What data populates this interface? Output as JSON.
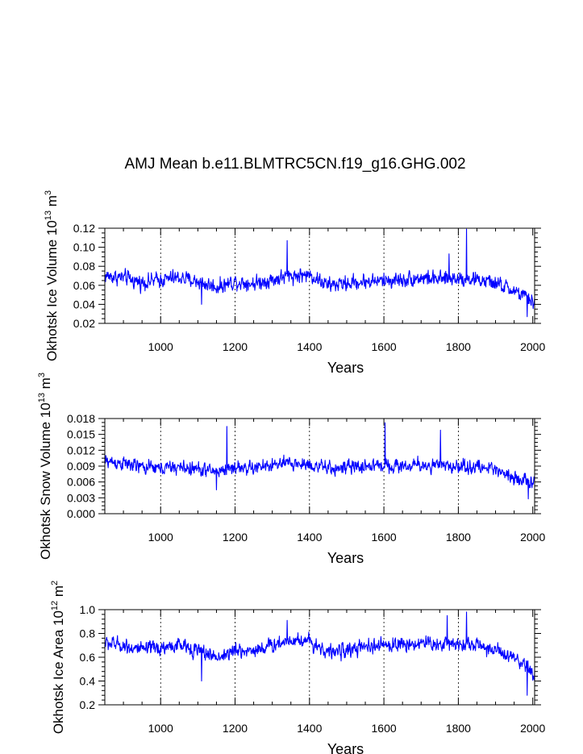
{
  "title": "AMJ Mean b.e11.BLMTRC5CN.f19_g16.GHG.002",
  "series_color": "#0000ff",
  "chart_data": [
    {
      "type": "line",
      "ylabel": "Okhotsk Ice Volume 10",
      "ylabel_exp": "13",
      "ylabel_unit": " m",
      "ylabel_unit_exp": "3",
      "xlabel": "Years",
      "xlim": [
        850,
        2005
      ],
      "ylim": [
        0.02,
        0.12
      ],
      "yticks": [
        0.02,
        0.04,
        0.06,
        0.08,
        0.1,
        0.12
      ],
      "ytick_labels": [
        "0.02",
        "0.04",
        "0.06",
        "0.08",
        "0.10",
        "0.12"
      ],
      "xticks": [
        1000,
        1200,
        1400,
        1600,
        1800,
        2000
      ],
      "xtick_labels": [
        "1000",
        "1200",
        "1400",
        "1600",
        "1800",
        "2000"
      ],
      "gridlines_x": [
        1000,
        1200,
        1400,
        1600,
        1800
      ],
      "approx_series": [
        {
          "year": 850,
          "value": 0.07
        },
        {
          "year": 900,
          "value": 0.068
        },
        {
          "year": 950,
          "value": 0.063
        },
        {
          "year": 1000,
          "value": 0.066
        },
        {
          "year": 1050,
          "value": 0.068
        },
        {
          "year": 1100,
          "value": 0.064
        },
        {
          "year": 1150,
          "value": 0.058
        },
        {
          "year": 1200,
          "value": 0.064
        },
        {
          "year": 1250,
          "value": 0.062
        },
        {
          "year": 1300,
          "value": 0.066
        },
        {
          "year": 1350,
          "value": 0.07
        },
        {
          "year": 1400,
          "value": 0.071
        },
        {
          "year": 1450,
          "value": 0.06
        },
        {
          "year": 1500,
          "value": 0.062
        },
        {
          "year": 1550,
          "value": 0.064
        },
        {
          "year": 1600,
          "value": 0.065
        },
        {
          "year": 1650,
          "value": 0.066
        },
        {
          "year": 1700,
          "value": 0.068
        },
        {
          "year": 1750,
          "value": 0.066
        },
        {
          "year": 1800,
          "value": 0.068
        },
        {
          "year": 1850,
          "value": 0.066
        },
        {
          "year": 1900,
          "value": 0.062
        },
        {
          "year": 1950,
          "value": 0.054
        },
        {
          "year": 2005,
          "value": 0.042
        }
      ],
      "noise": 0.011,
      "peaks": [
        {
          "year": 1822,
          "value": 0.119
        },
        {
          "year": 1340,
          "value": 0.107
        },
        {
          "year": 1775,
          "value": 0.093
        }
      ],
      "troughs": [
        {
          "year": 1985,
          "value": 0.027
        },
        {
          "year": 1110,
          "value": 0.04
        }
      ]
    },
    {
      "type": "line",
      "ylabel": "Okhotsk Snow Volume 10",
      "ylabel_exp": "13",
      "ylabel_unit": " m",
      "ylabel_unit_exp": "3",
      "xlabel": "Years",
      "xlim": [
        850,
        2005
      ],
      "ylim": [
        0.0,
        0.018
      ],
      "yticks": [
        0.0,
        0.003,
        0.006,
        0.009,
        0.012,
        0.015,
        0.018
      ],
      "ytick_labels": [
        "0.000",
        "0.003",
        "0.006",
        "0.009",
        "0.012",
        "0.015",
        "0.018"
      ],
      "xticks": [
        1000,
        1200,
        1400,
        1600,
        1800,
        2000
      ],
      "xtick_labels": [
        "1000",
        "1200",
        "1400",
        "1600",
        "1800",
        "2000"
      ],
      "gridlines_x": [
        1000,
        1200,
        1400,
        1600,
        1800
      ],
      "approx_series": [
        {
          "year": 850,
          "value": 0.01
        },
        {
          "year": 900,
          "value": 0.0095
        },
        {
          "year": 950,
          "value": 0.0088
        },
        {
          "year": 1000,
          "value": 0.0086
        },
        {
          "year": 1050,
          "value": 0.0088
        },
        {
          "year": 1100,
          "value": 0.0084
        },
        {
          "year": 1150,
          "value": 0.008
        },
        {
          "year": 1200,
          "value": 0.0088
        },
        {
          "year": 1250,
          "value": 0.0086
        },
        {
          "year": 1300,
          "value": 0.0092
        },
        {
          "year": 1350,
          "value": 0.0095
        },
        {
          "year": 1400,
          "value": 0.0093
        },
        {
          "year": 1450,
          "value": 0.0085
        },
        {
          "year": 1500,
          "value": 0.0087
        },
        {
          "year": 1550,
          "value": 0.009
        },
        {
          "year": 1600,
          "value": 0.0092
        },
        {
          "year": 1650,
          "value": 0.009
        },
        {
          "year": 1700,
          "value": 0.0092
        },
        {
          "year": 1750,
          "value": 0.009
        },
        {
          "year": 1800,
          "value": 0.009
        },
        {
          "year": 1850,
          "value": 0.0088
        },
        {
          "year": 1900,
          "value": 0.0085
        },
        {
          "year": 1950,
          "value": 0.007
        },
        {
          "year": 2005,
          "value": 0.0055
        }
      ],
      "noise": 0.0018,
      "peaks": [
        {
          "year": 1603,
          "value": 0.0172
        },
        {
          "year": 1178,
          "value": 0.0165
        },
        {
          "year": 1752,
          "value": 0.0158
        }
      ],
      "troughs": [
        {
          "year": 1988,
          "value": 0.0028
        },
        {
          "year": 1150,
          "value": 0.0045
        }
      ]
    },
    {
      "type": "line",
      "ylabel": "Okhotsk Ice Area 10",
      "ylabel_exp": "12",
      "ylabel_unit": " m",
      "ylabel_unit_exp": "2",
      "xlabel": "Years",
      "xlim": [
        850,
        2005
      ],
      "ylim": [
        0.2,
        1.0
      ],
      "yticks": [
        0.2,
        0.4,
        0.6,
        0.8,
        1.0
      ],
      "ytick_labels": [
        "0.2",
        "0.4",
        "0.6",
        "0.8",
        "1.0"
      ],
      "xticks": [
        1000,
        1200,
        1400,
        1600,
        1800,
        2000
      ],
      "xtick_labels": [
        "1000",
        "1200",
        "1400",
        "1600",
        "1800",
        "2000"
      ],
      "gridlines_x": [
        1000,
        1200,
        1400,
        1600,
        1800
      ],
      "approx_series": [
        {
          "year": 850,
          "value": 0.72
        },
        {
          "year": 900,
          "value": 0.7
        },
        {
          "year": 950,
          "value": 0.66
        },
        {
          "year": 1000,
          "value": 0.68
        },
        {
          "year": 1050,
          "value": 0.7
        },
        {
          "year": 1100,
          "value": 0.66
        },
        {
          "year": 1150,
          "value": 0.6
        },
        {
          "year": 1200,
          "value": 0.65
        },
        {
          "year": 1250,
          "value": 0.66
        },
        {
          "year": 1300,
          "value": 0.7
        },
        {
          "year": 1350,
          "value": 0.75
        },
        {
          "year": 1400,
          "value": 0.74
        },
        {
          "year": 1450,
          "value": 0.64
        },
        {
          "year": 1500,
          "value": 0.66
        },
        {
          "year": 1550,
          "value": 0.68
        },
        {
          "year": 1600,
          "value": 0.7
        },
        {
          "year": 1650,
          "value": 0.71
        },
        {
          "year": 1700,
          "value": 0.72
        },
        {
          "year": 1750,
          "value": 0.71
        },
        {
          "year": 1800,
          "value": 0.72
        },
        {
          "year": 1850,
          "value": 0.7
        },
        {
          "year": 1900,
          "value": 0.66
        },
        {
          "year": 1950,
          "value": 0.58
        },
        {
          "year": 2005,
          "value": 0.46
        }
      ],
      "noise": 0.085,
      "peaks": [
        {
          "year": 1822,
          "value": 0.98
        },
        {
          "year": 1770,
          "value": 0.95
        },
        {
          "year": 1340,
          "value": 0.91
        }
      ],
      "troughs": [
        {
          "year": 1985,
          "value": 0.28
        },
        {
          "year": 1110,
          "value": 0.4
        }
      ]
    }
  ]
}
